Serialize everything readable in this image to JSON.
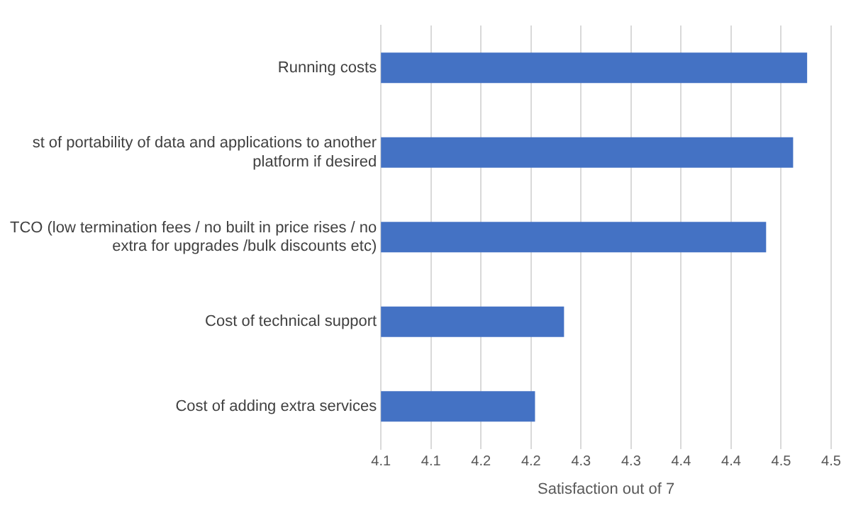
{
  "chart_data": {
    "type": "bar",
    "orientation": "horizontal",
    "categories": [
      "Running costs",
      "st of portability of data and applications to another platform if desired",
      "TCO (low termination fees / no built in price rises / no extra for upgrades /bulk discounts etc)",
      "Cost of technical support",
      "Cost of adding extra services"
    ],
    "values": [
      4.476,
      4.462,
      4.435,
      4.233,
      4.204
    ],
    "color": "#4472c4",
    "xlabel": "Satisfaction out of 7",
    "xlim": [
      4.05,
      4.5
    ],
    "xticks": [
      {
        "value": 4.05,
        "label": "4.1"
      },
      {
        "value": 4.1,
        "label": "4.1"
      },
      {
        "value": 4.15,
        "label": "4.2"
      },
      {
        "value": 4.2,
        "label": "4.2"
      },
      {
        "value": 4.25,
        "label": "4.3"
      },
      {
        "value": 4.3,
        "label": "4.3"
      },
      {
        "value": 4.35,
        "label": "4.4"
      },
      {
        "value": 4.4,
        "label": "4.4"
      },
      {
        "value": 4.45,
        "label": "4.5"
      },
      {
        "value": 4.5,
        "label": "4.5"
      }
    ],
    "grid": "x",
    "legend": false
  }
}
